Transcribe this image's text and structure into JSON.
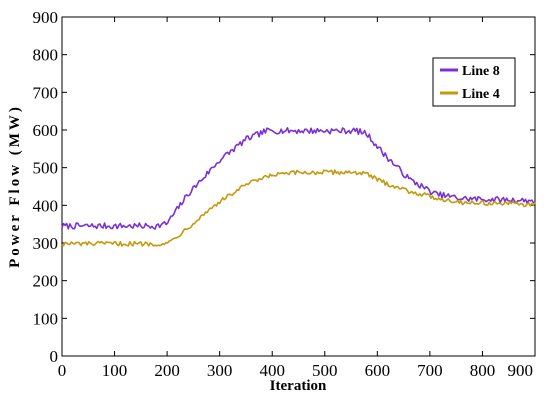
{
  "chart_data": {
    "type": "line",
    "title": "",
    "xlabel": "Iteration",
    "ylabel": "Power Flow (MW)",
    "xlim": [
      0,
      900
    ],
    "ylim": [
      0,
      900
    ],
    "x_ticks": [
      0,
      100,
      200,
      300,
      400,
      500,
      600,
      700,
      800,
      900
    ],
    "y_ticks": [
      0,
      100,
      200,
      300,
      400,
      500,
      600,
      700,
      800,
      900
    ],
    "grid": false,
    "legend_position": "top-right",
    "series": [
      {
        "name": "Line 8",
        "color": "#7b2fd6",
        "noise": 8,
        "keypoints": [
          [
            0,
            345
          ],
          [
            180,
            345
          ],
          [
            200,
            352
          ],
          [
            240,
            430
          ],
          [
            300,
            520
          ],
          [
            350,
            575
          ],
          [
            390,
            598
          ],
          [
            450,
            598
          ],
          [
            560,
            598
          ],
          [
            580,
            590
          ],
          [
            610,
            540
          ],
          [
            660,
            470
          ],
          [
            710,
            430
          ],
          [
            760,
            418
          ],
          [
            900,
            412
          ]
        ]
      },
      {
        "name": "Line 4",
        "color": "#c49a0c",
        "noise": 6,
        "keypoints": [
          [
            0,
            298
          ],
          [
            200,
            298
          ],
          [
            230,
            330
          ],
          [
            290,
            400
          ],
          [
            350,
            455
          ],
          [
            400,
            480
          ],
          [
            450,
            487
          ],
          [
            560,
            488
          ],
          [
            580,
            482
          ],
          [
            610,
            462
          ],
          [
            660,
            438
          ],
          [
            710,
            420
          ],
          [
            760,
            408
          ],
          [
            900,
            402
          ]
        ]
      }
    ]
  }
}
